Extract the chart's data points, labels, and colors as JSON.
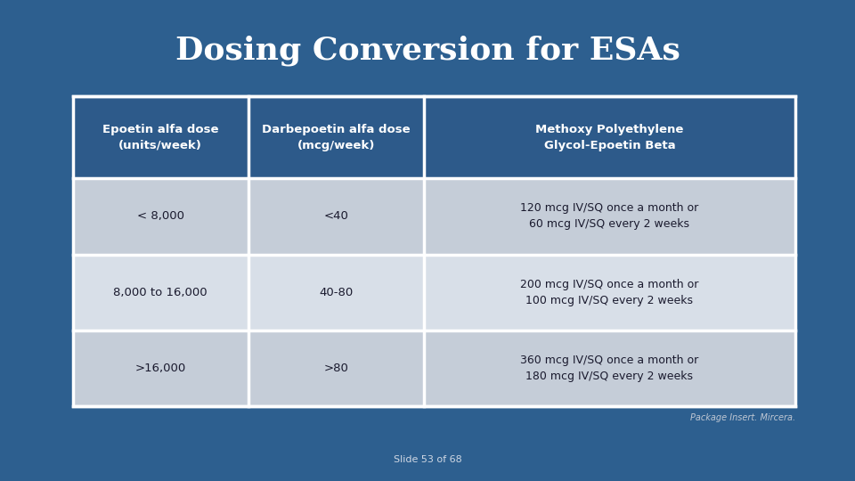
{
  "title": "Dosing Conversion for ESAs",
  "title_color": "#ffffff",
  "bg_color": "#2d5f8f",
  "table_bg_color": "#f0f0f0",
  "title_fontsize": 26,
  "header_bg_color": "#2d5a8a",
  "header_text_color": "#ffffff",
  "row_bg_color_odd": "#c5cdd8",
  "row_bg_color_even": "#d8dfe8",
  "cell_text_color": "#1a1a2e",
  "footer_text": "Package Insert. Mircera.",
  "slide_text": "Slide 53 of 68",
  "headers": [
    "Epoetin alfa dose\n(units/week)",
    "Darbepoetin alfa dose\n(mcg/week)",
    "Methoxy Polyethylene\nGlycol-Epoetin Beta"
  ],
  "rows": [
    [
      "< 8,000",
      "<40",
      "120 mcg IV/SQ once a month or\n60 mcg IV/SQ every 2 weeks"
    ],
    [
      "8,000 to 16,000",
      "40-80",
      "200 mcg IV/SQ once a month or\n100 mcg IV/SQ every 2 weeks"
    ],
    [
      ">16,000",
      ">80",
      "360 mcg IV/SQ once a month or\n180 mcg IV/SQ every 2 weeks"
    ]
  ]
}
